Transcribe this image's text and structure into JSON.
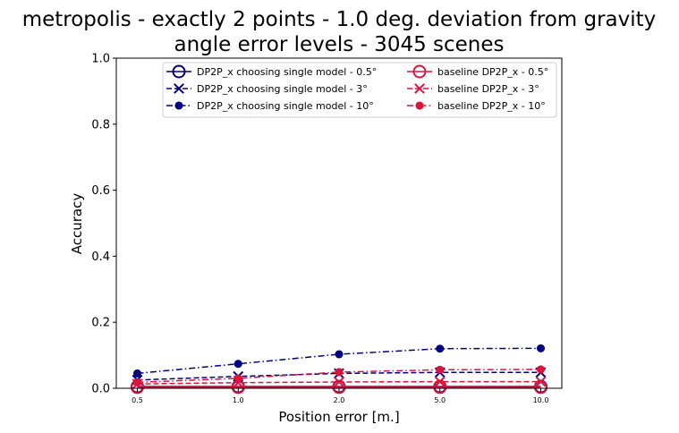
{
  "chart_data": {
    "type": "line",
    "title_line1": "metropolis - exactly 2 points - 1.0 deg. deviation from gravity",
    "title_line2": "angle error levels - 3045 scenes",
    "xlabel": "Position error [m.]",
    "ylabel": "Accuracy",
    "categories": [
      "0.5",
      "1.0",
      "2.0",
      "5.0",
      "10.0"
    ],
    "ylim": [
      0,
      1
    ],
    "yticks": [
      "0.0",
      "0.2",
      "0.4",
      "0.6",
      "0.8",
      "1.0"
    ],
    "legend_location": "upper center, two columns",
    "series": [
      {
        "name": "DP2P_x choosing single model - 0.5°",
        "color": "#000080",
        "linestyle": "solid",
        "marker": "open-circle",
        "values": [
          0.005,
          0.005,
          0.005,
          0.005,
          0.005
        ]
      },
      {
        "name": "DP2P_x choosing single model - 3°",
        "color": "#000080",
        "linestyle": "dashed",
        "marker": "x",
        "values": [
          0.025,
          0.036,
          0.045,
          0.048,
          0.048
        ]
      },
      {
        "name": "DP2P_x choosing single model - 10°",
        "color": "#000080",
        "linestyle": "dashdot",
        "marker": "filled-circle",
        "values": [
          0.045,
          0.074,
          0.103,
          0.12,
          0.121
        ]
      },
      {
        "name": "baseline DP2P_x - 0.5°",
        "color": "#dc143c",
        "linestyle": "solid",
        "marker": "open-circle",
        "values": [
          0.003,
          0.003,
          0.003,
          0.003,
          0.003
        ]
      },
      {
        "name": "baseline DP2P_x - 3°",
        "color": "#dc143c",
        "linestyle": "dashed",
        "marker": "x",
        "values": [
          0.013,
          0.017,
          0.019,
          0.02,
          0.02
        ]
      },
      {
        "name": "baseline DP2P_x - 10°",
        "color": "#dc143c",
        "linestyle": "dashdot",
        "marker": "filled-circle",
        "values": [
          0.018,
          0.03,
          0.049,
          0.056,
          0.057
        ]
      }
    ]
  }
}
